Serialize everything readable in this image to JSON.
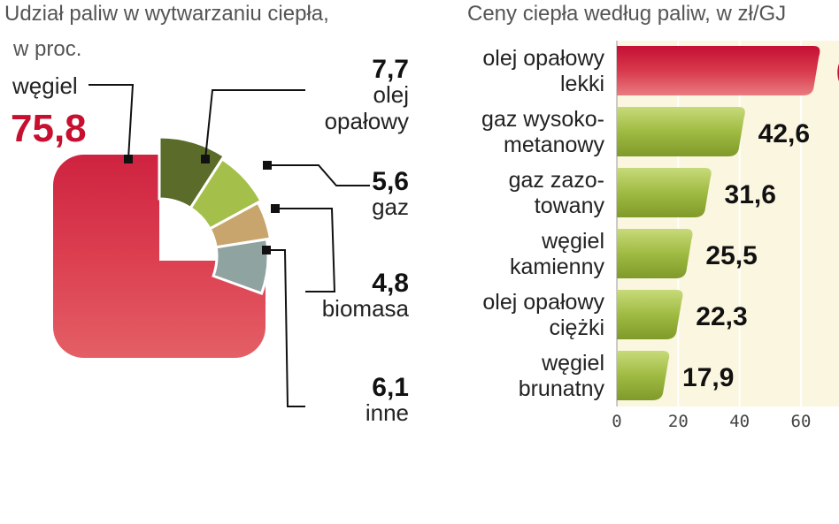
{
  "left_title_line1": "Udział paliw w wytwarzaniu ciepła,",
  "left_title_line2": "w proc.",
  "right_title": "Ceny ciepła według paliw, w zł/GJ",
  "colors": {
    "red": "#d42a45",
    "dark_green": "#5a6b2a",
    "light_green": "#a5c04a",
    "tan": "#c9a56e",
    "gray": "#8fa3a0",
    "bar_green": "#9fba3f",
    "bar_plot_bg": "#fbf6df"
  },
  "chart_data": [
    {
      "type": "pie",
      "title": "Udział paliw w wytwarzaniu ciepła, w proc.",
      "series": [
        {
          "name": "węgiel",
          "label": "węgiel",
          "value": 75.8,
          "value_text": "75,8"
        },
        {
          "name": "olej opałowy",
          "label": "olej\nopałowy",
          "value": 7.7,
          "value_text": "7,7"
        },
        {
          "name": "gaz",
          "label": "gaz",
          "value": 5.6,
          "value_text": "5,6"
        },
        {
          "name": "biomasa",
          "label": "biomasa",
          "value": 4.8,
          "value_text": "4,8"
        },
        {
          "name": "inne",
          "label": "inne",
          "value": 6.1,
          "value_text": "6,1"
        }
      ]
    },
    {
      "type": "bar",
      "orientation": "horizontal",
      "title": "Ceny ciepła według paliw, w zł/GJ",
      "categories": [
        "olej opałowy\nlekki",
        "gaz wysoko-\nmetanowy",
        "gaz zazo-\ntowany",
        "węgiel\nkamienny",
        "olej opałowy\nciężki",
        "węgiel\nbrunatny"
      ],
      "values": [
        67.0,
        42.6,
        31.6,
        25.5,
        22.3,
        17.9
      ],
      "value_labels": [
        "",
        "42,6",
        "31,6",
        "25,5",
        "22,3",
        "17,9"
      ],
      "xlim": [
        0,
        80
      ],
      "xticks": [
        0,
        20,
        40,
        60
      ],
      "xtick_labels": [
        "0",
        "20",
        "40",
        "60"
      ],
      "grid": true
    }
  ]
}
